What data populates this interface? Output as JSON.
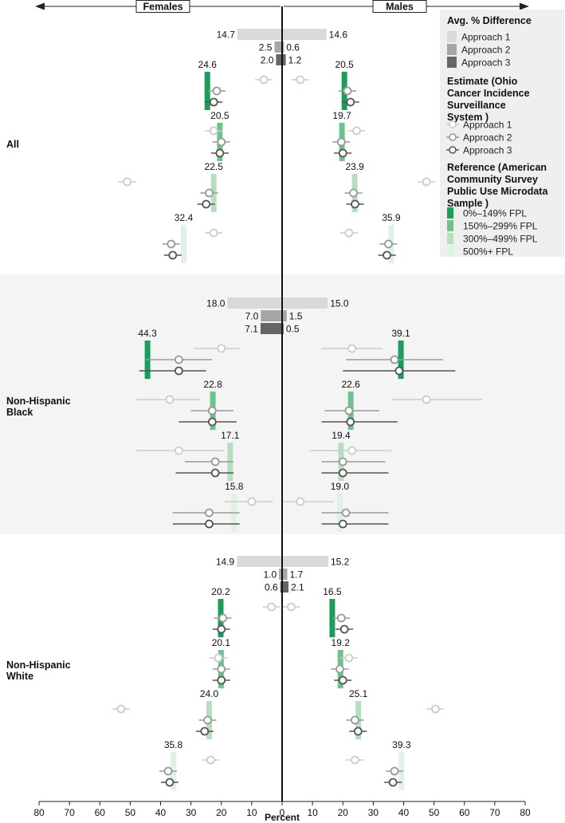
{
  "chart_data": {
    "type": "bar",
    "header": {
      "left": "Females",
      "right": "Males"
    },
    "xlabel": "Percent",
    "x_ticks": [
      "80",
      "70",
      "60",
      "50",
      "40",
      "30",
      "20",
      "10",
      "0",
      "10",
      "20",
      "30",
      "40",
      "50",
      "60",
      "70",
      "80"
    ],
    "legend": {
      "title1": "Avg. % Difference",
      "diff_items": [
        "Approach 1",
        "Approach 2",
        "Approach 3"
      ],
      "title2": [
        "Estimate (Ohio",
        "Cancer Incidence",
        "Surveillance",
        "System )"
      ],
      "est_items": [
        "Approach 1",
        "Approach 2",
        "Approach 3"
      ],
      "title3": [
        "Reference (American",
        "Community Survey",
        "Public Use Microdata",
        "Sample )"
      ],
      "ref_items": [
        "0%–149% FPL",
        "150%–299% FPL",
        "300%–499% FPL",
        "500%+ FPL"
      ]
    },
    "colors": {
      "diff": [
        "#d9d9d9",
        "#a6a6a6",
        "#666666"
      ],
      "ref": [
        "#1a9e5c",
        "#6cc48d",
        "#b4e0c0",
        "#dff2e3"
      ],
      "est_stroke": [
        "#cccccc",
        "#999999",
        "#555555"
      ],
      "band": "#f4f4f4"
    },
    "groups": [
      {
        "label": [
          "All"
        ],
        "diff": {
          "female": [
            14.7,
            2.5,
            2.0
          ],
          "male": [
            14.6,
            0.6,
            1.2
          ]
        },
        "fpl": [
          {
            "ref_f": 24.6,
            "ref_m": 20.5,
            "est_f": [
              [
                6,
                null,
                null
              ],
              [
                21.5,
                null,
                null
              ],
              [
                22.5,
                null,
                null
              ]
            ],
            "est_m": [
              [
                6,
                null,
                null
              ],
              [
                21.5,
                null,
                null
              ],
              [
                22.5,
                null,
                null
              ]
            ]
          },
          {
            "ref_f": 20.5,
            "ref_m": 19.7,
            "est_f": [
              [
                22.5,
                null,
                null
              ],
              [
                20,
                null,
                null
              ],
              [
                20.5,
                null,
                null
              ]
            ],
            "est_m": [
              [
                24.5,
                null,
                null
              ],
              [
                19.5,
                null,
                null
              ],
              [
                20,
                null,
                null
              ]
            ]
          },
          {
            "ref_f": 22.5,
            "ref_m": 23.9,
            "est_f": [
              [
                51,
                null,
                null
              ],
              [
                24,
                null,
                null
              ],
              [
                25,
                null,
                null
              ]
            ],
            "est_m": [
              [
                47.5,
                null,
                null
              ],
              [
                23.5,
                null,
                null
              ],
              [
                24,
                null,
                null
              ]
            ]
          },
          {
            "ref_f": 32.4,
            "ref_m": 35.9,
            "est_f": [
              [
                22.5,
                null,
                null
              ],
              [
                36.5,
                null,
                null
              ],
              [
                36,
                null,
                null
              ]
            ],
            "est_m": [
              [
                22,
                null,
                null
              ],
              [
                35,
                null,
                null
              ],
              [
                34.5,
                null,
                null
              ]
            ]
          }
        ]
      },
      {
        "label": [
          "Non-Hispanic",
          "Black"
        ],
        "diff": {
          "female": [
            18.0,
            7.0,
            7.1
          ],
          "male": [
            15.0,
            1.5,
            0.5
          ]
        },
        "fpl": [
          {
            "ref_f": 44.3,
            "ref_m": 39.1,
            "est_f": [
              [
                20,
                29,
                14
              ],
              [
                34,
                45,
                23
              ],
              [
                34,
                47,
                25
              ]
            ],
            "est_m": [
              [
                23,
                33,
                13
              ],
              [
                37,
                53,
                21
              ],
              [
                38.5,
                57,
                20
              ]
            ]
          },
          {
            "ref_f": 22.8,
            "ref_m": 22.6,
            "est_f": [
              [
                37,
                48,
                27
              ],
              [
                23,
                30,
                16
              ],
              [
                23,
                34,
                15
              ]
            ],
            "est_m": [
              [
                47.5,
                66,
                36
              ],
              [
                22,
                32,
                14
              ],
              [
                22.5,
                38,
                13
              ]
            ]
          },
          {
            "ref_f": 17.1,
            "ref_m": 19.4,
            "est_f": [
              [
                34,
                48,
                19
              ],
              [
                22,
                32,
                16
              ],
              [
                22,
                35,
                16
              ]
            ],
            "est_m": [
              [
                23,
                36,
                9
              ],
              [
                20,
                34,
                13
              ],
              [
                20,
                35,
                13
              ]
            ]
          },
          {
            "ref_f": 15.8,
            "ref_m": 19.0,
            "est_f": [
              [
                10,
                19,
                3
              ],
              [
                24,
                36,
                14
              ],
              [
                24,
                36,
                14
              ]
            ],
            "est_m": [
              [
                6,
                17,
                0
              ],
              [
                21,
                35,
                13
              ],
              [
                20,
                35,
                13
              ]
            ]
          }
        ]
      },
      {
        "label": [
          "Non-Hispanic",
          "White"
        ],
        "diff": {
          "female": [
            14.9,
            1.0,
            0.6
          ],
          "male": [
            15.2,
            1.7,
            2.1
          ]
        },
        "fpl": [
          {
            "ref_f": 20.2,
            "ref_m": 16.5,
            "est_f": [
              [
                3.5,
                null,
                null
              ],
              [
                19.5,
                null,
                null
              ],
              [
                20,
                null,
                null
              ]
            ],
            "est_m": [
              [
                3,
                null,
                null
              ],
              [
                19.5,
                null,
                null
              ],
              [
                20.5,
                null,
                null
              ]
            ]
          },
          {
            "ref_f": 20.1,
            "ref_m": 19.2,
            "est_f": [
              [
                21,
                null,
                null
              ],
              [
                20,
                null,
                null
              ],
              [
                20,
                null,
                null
              ]
            ],
            "est_m": [
              [
                22,
                null,
                null
              ],
              [
                19,
                null,
                null
              ],
              [
                20,
                null,
                null
              ]
            ]
          },
          {
            "ref_f": 24.0,
            "ref_m": 25.1,
            "est_f": [
              [
                53,
                null,
                null
              ],
              [
                24.5,
                null,
                null
              ],
              [
                25.5,
                null,
                null
              ]
            ],
            "est_m": [
              [
                50.5,
                null,
                null
              ],
              [
                24,
                null,
                null
              ],
              [
                25,
                null,
                null
              ]
            ]
          },
          {
            "ref_f": 35.8,
            "ref_m": 39.3,
            "est_f": [
              [
                23.5,
                null,
                null
              ],
              [
                37.5,
                null,
                null
              ],
              [
                37,
                null,
                null
              ]
            ],
            "est_m": [
              [
                24,
                null,
                null
              ],
              [
                37,
                null,
                null
              ],
              [
                36.5,
                null,
                null
              ]
            ]
          }
        ]
      }
    ]
  }
}
